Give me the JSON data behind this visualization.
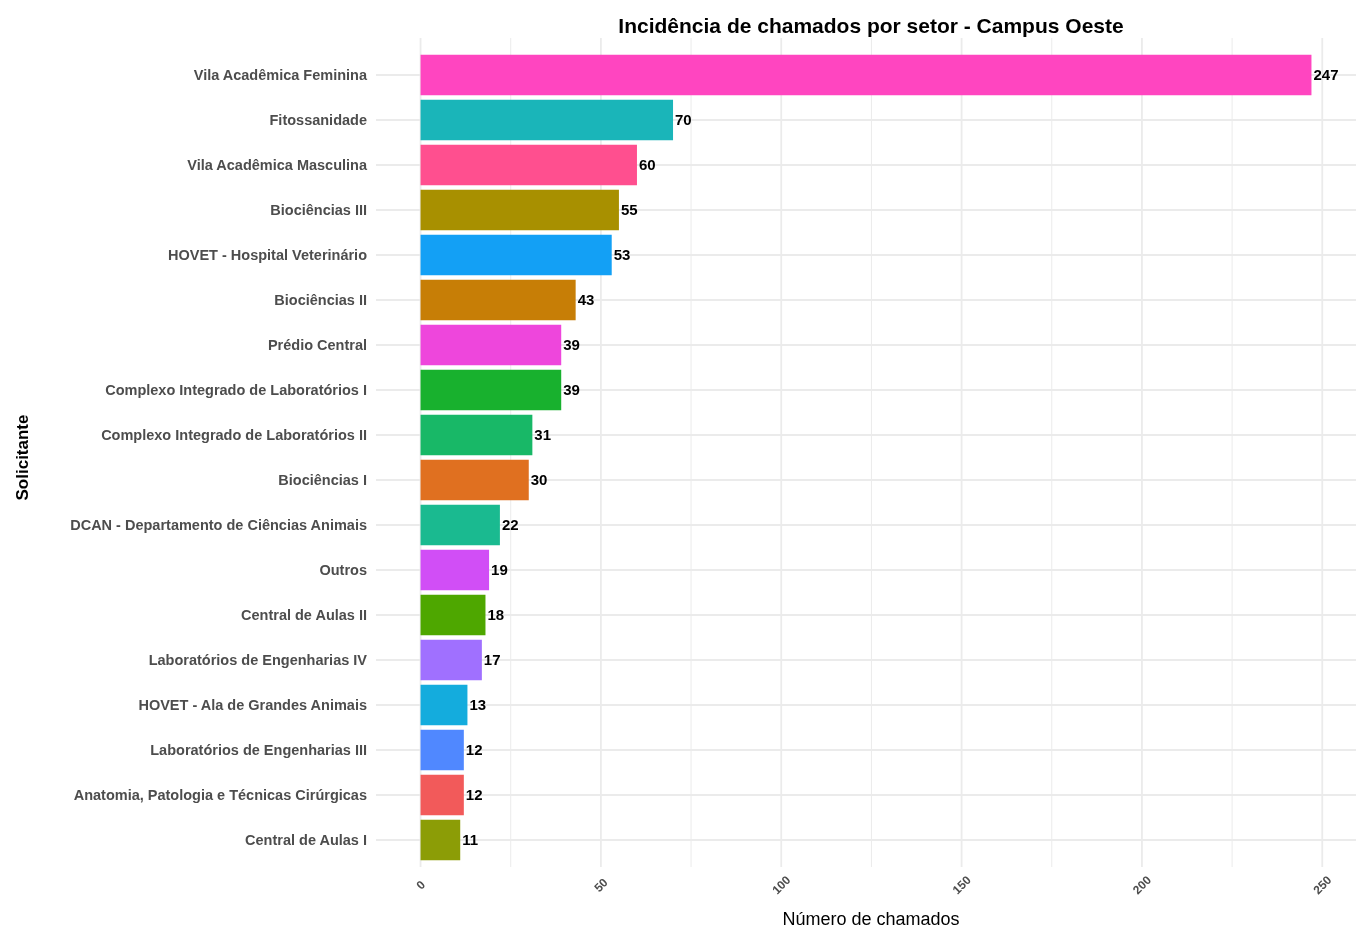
{
  "chart_data": {
    "type": "bar",
    "orientation": "horizontal",
    "title": "Incidência de chamados por setor - Campus Oeste",
    "xlabel": "Número de chamados",
    "ylabel": "Solicitante",
    "categories": [
      "Vila Acadêmica Feminina",
      "Fitossanidade",
      "Vila Acadêmica Masculina",
      "Biociências III",
      "HOVET - Hospital Veterinário",
      "Biociências II",
      "Prédio Central",
      "Complexo Integrado de Laboratórios I",
      "Complexo Integrado de Laboratórios II",
      "Biociências I",
      "DCAN - Departamento de Ciências Animais",
      "Outros",
      "Central de Aulas II",
      "Laboratórios de Engenharias IV",
      "HOVET - Ala de Grandes Animais",
      "Laboratórios de Engenharias III",
      "Anatomia, Patologia e Técnicas Cirúrgicas",
      "Central de Aulas I"
    ],
    "values": [
      247,
      70,
      60,
      55,
      53,
      43,
      39,
      39,
      31,
      30,
      22,
      19,
      18,
      17,
      13,
      12,
      12,
      11
    ],
    "colors": [
      "#ff45c0",
      "#1ab5b9",
      "#ff4f8f",
      "#a89000",
      "#13a0f5",
      "#c77e06",
      "#ee46dc",
      "#18b12e",
      "#18b867",
      "#e07020",
      "#1aba90",
      "#d14ef6",
      "#4ea700",
      "#a070ff",
      "#14acdd",
      "#5088ff",
      "#f25a5a",
      "#8c9d06"
    ],
    "xlim": [
      -12.35,
      259.35
    ],
    "xticks": [
      0,
      {
        "value": 25,
        "label": null
      },
      50,
      {
        "value": 75,
        "label": null
      },
      100,
      {
        "value": 125,
        "label": null
      },
      150,
      {
        "value": 175,
        "label": null
      },
      200,
      {
        "value": 225,
        "label": null
      },
      250
    ],
    "grid": true,
    "data_labels": true
  }
}
